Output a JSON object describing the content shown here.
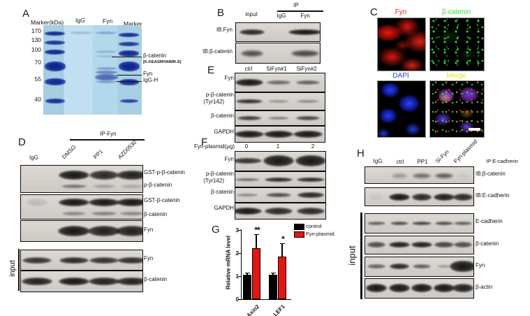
{
  "panels": {
    "a": {
      "label": "A",
      "marker_header": "Marker(kDa)",
      "marker_values": [
        "170",
        "130",
        "100",
        "70",
        "55",
        "40"
      ],
      "lane_labels": [
        "IgG",
        "Fyn",
        "Marker"
      ],
      "annotations": {
        "beta_catenin": "β-catenin",
        "peptide": "[K.KEASRHAIMR.S]",
        "fyn": "Fyn",
        "igg_h": "IgG-H"
      }
    },
    "b": {
      "label": "B",
      "ip_header": "IP",
      "col_labels": [
        "input",
        "IgG",
        "Fyn"
      ],
      "rows": [
        {
          "label": "IB:Fyn",
          "bands": [
            0.9,
            0,
            1
          ]
        },
        {
          "label": "IB:β-catenin",
          "bands": [
            0.7,
            0,
            0.75
          ]
        }
      ]
    },
    "c": {
      "label": "C",
      "images": [
        {
          "title": "Fyn",
          "color": "#f3241c"
        },
        {
          "title": "β-catenin",
          "color": "#35e02c"
        },
        {
          "title": "DAPI",
          "color": "#2b3bf0"
        },
        {
          "title": "Merge",
          "color": "#e8e410"
        }
      ]
    },
    "d": {
      "label": "D",
      "ip_header": "IP-Fyn",
      "lane_labels": [
        "IgG",
        "DMSO",
        "PP1",
        "AZD0530"
      ],
      "blots": [
        {
          "labels": [
            "GST-p-β-catenin",
            "p-β-catenin"
          ],
          "rows": [
            [
              0,
              1,
              0.9,
              0.95
            ],
            [
              0,
              0.5,
              0.25,
              0.2
            ]
          ]
        },
        {
          "labels": [
            "GST-β-catenin",
            "β-catenin"
          ],
          "rows": [
            [
              0.12,
              1,
              1,
              1
            ],
            [
              0,
              0.4,
              0.45,
              0.4
            ]
          ]
        },
        {
          "labels": [
            "Fyn"
          ],
          "rows": [
            [
              0,
              1,
              0.95,
              0.95
            ]
          ]
        }
      ],
      "input_label": "input",
      "input_blots": [
        {
          "labels": [
            "Fyn"
          ],
          "rows": [
            [
              0.85,
              0.9,
              0.85,
              0.88
            ]
          ]
        },
        {
          "labels": [
            "β-catenin"
          ],
          "rows": [
            [
              0.95,
              1,
              0.95,
              0.95
            ]
          ]
        }
      ]
    },
    "e": {
      "label": "E",
      "lane_labels": [
        "ctrl",
        "SiFyn#1",
        "SiFyn#2"
      ],
      "rows": [
        {
          "labels": [
            "Fyn"
          ],
          "bands": [
            1,
            0.55,
            0.6
          ]
        },
        {
          "labels": [
            "p-β-catenin",
            "(Tyr142)"
          ],
          "bands": [
            0.85,
            0.35,
            0.4
          ]
        },
        {
          "labels": [
            "β-catenin"
          ],
          "bands": [
            0.8,
            0.45,
            0.75
          ]
        },
        {
          "labels": [
            "GAPDH"
          ],
          "bands": [
            1,
            1,
            1
          ]
        }
      ]
    },
    "f": {
      "label": "F",
      "dose_header": "Fyn-plasmid(μg)",
      "lane_labels": [
        "0",
        "1",
        "2"
      ],
      "rows": [
        {
          "labels": [
            "Fyn"
          ],
          "bands": [
            0.85,
            1,
            1
          ]
        },
        {
          "labels": [
            "p-β-catenin",
            "(Tyr142)"
          ],
          "bands": [
            0.55,
            0.9,
            0.9
          ]
        },
        {
          "labels": [
            "β-catenin"
          ],
          "bands": [
            0.4,
            0.7,
            0.9
          ]
        },
        {
          "labels": [
            "GAPDH"
          ],
          "bands": [
            1,
            0.9,
            0.9
          ]
        }
      ]
    },
    "g": {
      "label": "G"
    },
    "h": {
      "label": "H",
      "lane_labels": [
        "IgG",
        "ctrl",
        "PP1",
        "Si-Fyn",
        "Fyn-plasmid"
      ],
      "ip_header": "IP:E-cadherin",
      "ip_rows": [
        {
          "label": "IB:β-catenin",
          "bands": [
            0,
            0.3,
            0.55,
            0.65,
            0.05
          ]
        },
        {
          "label": "IB:E-cadherin",
          "bands": [
            0.05,
            1,
            0.9,
            0.95,
            0.9
          ]
        }
      ],
      "input_label": "input",
      "input_rows": [
        {
          "label": "E-cadherin",
          "bands": [
            0.6,
            0.7,
            0.75,
            0.7,
            0.6
          ]
        },
        {
          "label": "β-catenin",
          "bands": [
            0.7,
            0.95,
            0.95,
            0.75,
            0.7
          ]
        },
        {
          "label": "Fyn",
          "bands": [
            0.6,
            0.9,
            0.6,
            0.3,
            1
          ]
        },
        {
          "label": "β-actin",
          "bands": [
            1,
            1,
            1,
            1,
            0.95
          ]
        }
      ]
    }
  },
  "chart_data": {
    "type": "bar",
    "title": "",
    "ylabel": "Relative mRNA level",
    "categories": [
      "Axin2",
      "LEF1"
    ],
    "series": [
      {
        "name": "control",
        "color": "#000000",
        "values": [
          1.05,
          1.05
        ],
        "errors": [
          0.1,
          0.1
        ]
      },
      {
        "name": "Fyn-plasmid",
        "color": "#e81313",
        "values": [
          2.2,
          1.85
        ],
        "errors": [
          0.6,
          0.55
        ]
      }
    ],
    "significance": [
      "**",
      "*"
    ],
    "ylim": [
      0,
      3
    ],
    "yticks": [
      0,
      1,
      2,
      3
    ],
    "grid": false,
    "legend_position": "top-right"
  }
}
